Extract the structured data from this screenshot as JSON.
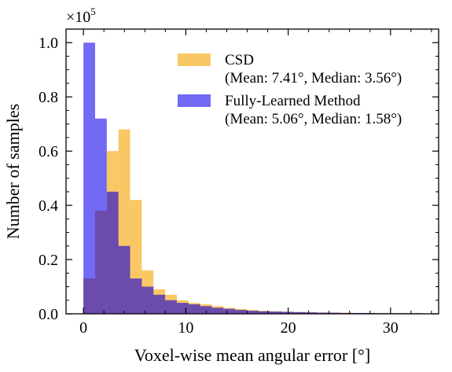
{
  "chart_data": {
    "type": "bar",
    "subtype": "overlapping-histogram",
    "title": "",
    "xlabel": "Voxel-wise mean angular error [°]",
    "ylabel": "Number of samples",
    "y_scale_label": "×10",
    "y_scale_exponent": "5",
    "xlim": [
      -1.7,
      34.7
    ],
    "ylim": [
      0,
      1.05
    ],
    "xticks": [
      0,
      10,
      20,
      30
    ],
    "yticks": [
      0.0,
      0.2,
      0.4,
      0.6,
      0.8,
      1.0
    ],
    "xtick_labels": [
      "0",
      "10",
      "20",
      "30"
    ],
    "ytick_labels": [
      "0.0",
      "0.2",
      "0.4",
      "0.6",
      "0.8",
      "1.0"
    ],
    "grid": false,
    "legend_position": "top-right",
    "bin_edges": [
      0,
      1.14,
      2.28,
      3.42,
      4.56,
      5.7,
      6.84,
      7.98,
      9.12,
      10.26,
      11.4,
      12.54,
      13.68,
      14.82,
      15.96,
      17.1,
      18.24,
      19.38,
      20.52,
      21.66,
      22.8,
      23.94,
      25.08,
      26.22,
      27.36,
      28.5,
      29.64,
      30.78,
      31.92,
      33.06,
      34.2
    ],
    "series": [
      {
        "name": "CSD",
        "legend_detail": "(Mean: 7.41°, Median: 3.56°)",
        "color": "#f8b73a",
        "values": [
          0.13,
          0.38,
          0.6,
          0.68,
          0.42,
          0.16,
          0.09,
          0.07,
          0.05,
          0.04,
          0.035,
          0.028,
          0.022,
          0.018,
          0.014,
          0.011,
          0.009,
          0.008,
          0.007,
          0.006,
          0.005,
          0.004,
          0.004,
          0.003,
          0.003,
          0.003,
          0.002,
          0.002,
          0.002,
          0.002
        ]
      },
      {
        "name": "Fully-Learned Method",
        "legend_detail": "(Mean: 5.06°, Median: 1.58°)",
        "color": "#4a3ff2",
        "values": [
          1.0,
          0.72,
          0.45,
          0.25,
          0.13,
          0.1,
          0.07,
          0.05,
          0.04,
          0.035,
          0.028,
          0.022,
          0.018,
          0.014,
          0.011,
          0.009,
          0.008,
          0.007,
          0.006,
          0.005,
          0.004,
          0.004,
          0.003,
          0.003,
          0.003,
          0.002,
          0.002,
          0.002,
          0.002,
          0.001
        ]
      }
    ]
  }
}
